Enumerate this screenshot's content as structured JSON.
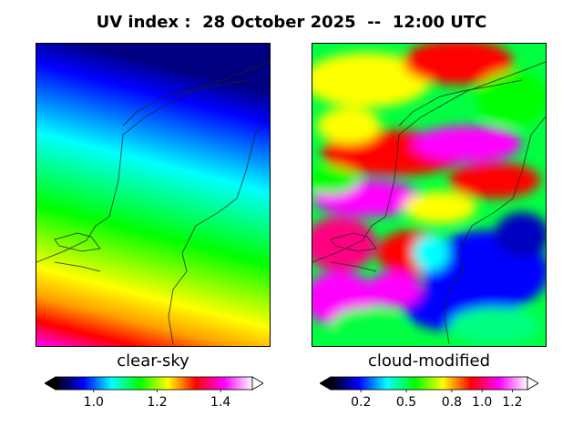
{
  "title": "UV index :  28 October 2025  --  12:00 UTC",
  "panels": [
    {
      "label": "clear-sky",
      "colorbar": {
        "min": 0.88,
        "max": 1.5,
        "ticks": [
          "1.0",
          "1.2",
          "1.4"
        ],
        "tick_values": [
          1.0,
          1.2,
          1.4
        ],
        "extend": "both"
      }
    },
    {
      "label": "cloud-modified",
      "colorbar": {
        "min": 0.0,
        "max": 1.3,
        "ticks": [
          "0.2",
          "0.5",
          "0.8",
          "1.0",
          "1.2"
        ],
        "tick_values": [
          0.2,
          0.5,
          0.8,
          1.0,
          1.2
        ],
        "extend": "both"
      }
    }
  ],
  "colormap": [
    "#000000",
    "#0000ff",
    "#00ffff",
    "#00ff00",
    "#ffff00",
    "#ff0000",
    "#ff00ff",
    "#ffffff"
  ]
}
